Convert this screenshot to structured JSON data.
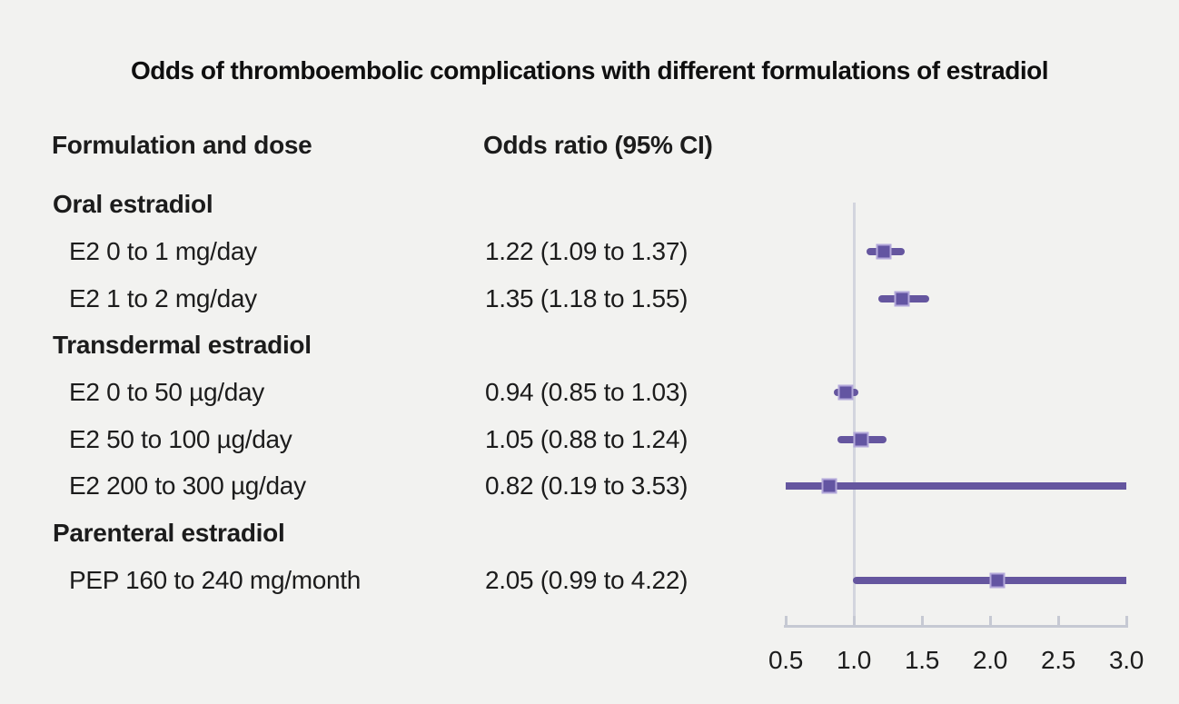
{
  "title": "Odds of thromboembolic complications with different formulations of estradiol",
  "columns": {
    "formulation": "Formulation and dose",
    "odds_ratio": "Odds ratio (95% CI)"
  },
  "chart_data": {
    "type": "forest",
    "title": "Odds of thromboembolic complications with different formulations of estradiol",
    "xlabel": "",
    "ylabel": "",
    "xlim": [
      0.5,
      3.0
    ],
    "x_tick_values": [
      0.5,
      1.0,
      1.5,
      2.0,
      2.5,
      3.0
    ],
    "x_tick_labels": [
      "0.5",
      "1.0",
      "1.5",
      "2.0",
      "2.5",
      "3.0"
    ],
    "reference_line_x": 1.0,
    "grid": false,
    "rows": [
      {
        "kind": "group",
        "label": "Oral estradiol"
      },
      {
        "kind": "item",
        "label": "E2 0 to 1 mg/day",
        "or_text": "1.22 (1.09 to 1.37)",
        "estimate": 1.22,
        "ci_low": 1.09,
        "ci_high": 1.37
      },
      {
        "kind": "item",
        "label": "E2 1 to 2 mg/day",
        "or_text": "1.35 (1.18 to 1.55)",
        "estimate": 1.35,
        "ci_low": 1.18,
        "ci_high": 1.55
      },
      {
        "kind": "group",
        "label": "Transdermal estradiol"
      },
      {
        "kind": "item",
        "label": "E2 0 to 50 µg/day",
        "or_text": "0.94 (0.85 to 1.03)",
        "estimate": 0.94,
        "ci_low": 0.85,
        "ci_high": 1.03
      },
      {
        "kind": "item",
        "label": "E2 50 to 100 µg/day",
        "or_text": "1.05 (0.88 to 1.24)",
        "estimate": 1.05,
        "ci_low": 0.88,
        "ci_high": 1.24
      },
      {
        "kind": "item",
        "label": "E2 200 to 300 µg/day",
        "or_text": "0.82 (0.19 to 3.53)",
        "estimate": 0.82,
        "ci_low": 0.19,
        "ci_high": 3.53
      },
      {
        "kind": "group",
        "label": "Parenteral estradiol"
      },
      {
        "kind": "item",
        "label": "PEP 160 to 240 mg/month",
        "or_text": "2.05 (0.99 to 4.22)",
        "estimate": 2.05,
        "ci_low": 0.99,
        "ci_high": 4.22
      }
    ],
    "colors": {
      "background": "#f2f2f0",
      "text": "#1c1c1c",
      "ci_line": "#65569f",
      "marker_fill": "#6355a2",
      "marker_border": "#b3a8da",
      "reference_line": "#d3d5de",
      "axis": "#c6c9d3"
    }
  }
}
